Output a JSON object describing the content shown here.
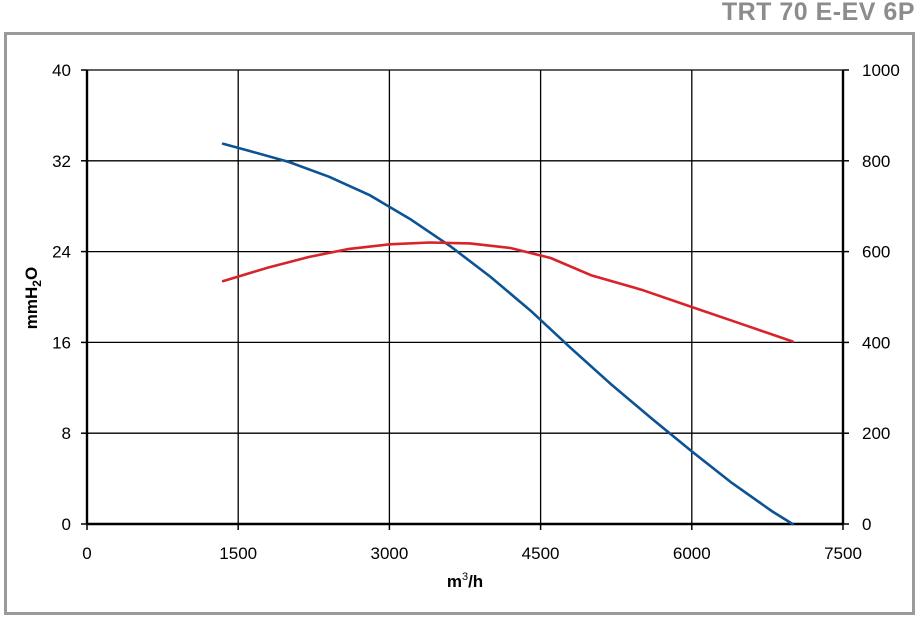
{
  "header": {
    "title": "TRT 70 E-EV 6P"
  },
  "chart_data": {
    "type": "line",
    "xlabel": "m3/h",
    "xlabel_base": "m",
    "xlabel_sup": "3",
    "xlabel_tail": "/h",
    "ylabel": "mmH2O",
    "ylabel_base": "mmH",
    "ylabel_sub": "2",
    "ylabel_tail": "O",
    "xlim": [
      0,
      7500
    ],
    "ylim": [
      0,
      40
    ],
    "y2lim": [
      0,
      1000
    ],
    "x_ticks": [
      0,
      1500,
      3000,
      4500,
      6000,
      7500
    ],
    "y_ticks": [
      0,
      8,
      16,
      24,
      32,
      40
    ],
    "y2_ticks": [
      0,
      200,
      400,
      600,
      800,
      1000
    ],
    "grid": true,
    "series": [
      {
        "axis": "left",
        "color": "#0b5394",
        "x": [
          1350,
          1600,
          2000,
          2400,
          2800,
          3200,
          3600,
          4000,
          4400,
          4800,
          5200,
          5600,
          6000,
          6400,
          6800,
          7000
        ],
        "values": [
          33.5,
          32.9,
          31.9,
          30.6,
          29.0,
          26.9,
          24.5,
          21.8,
          18.8,
          15.5,
          12.3,
          9.3,
          6.4,
          3.6,
          1.1,
          0.0
        ]
      },
      {
        "axis": "right",
        "color": "#d9232b",
        "x": [
          1350,
          1800,
          2200,
          2600,
          3000,
          3400,
          3800,
          4200,
          4600,
          5000,
          5500,
          6000,
          6500,
          7000
        ],
        "values": [
          535,
          565,
          588,
          606,
          616,
          620,
          618,
          608,
          586,
          548,
          516,
          478,
          440,
          402
        ]
      }
    ]
  }
}
